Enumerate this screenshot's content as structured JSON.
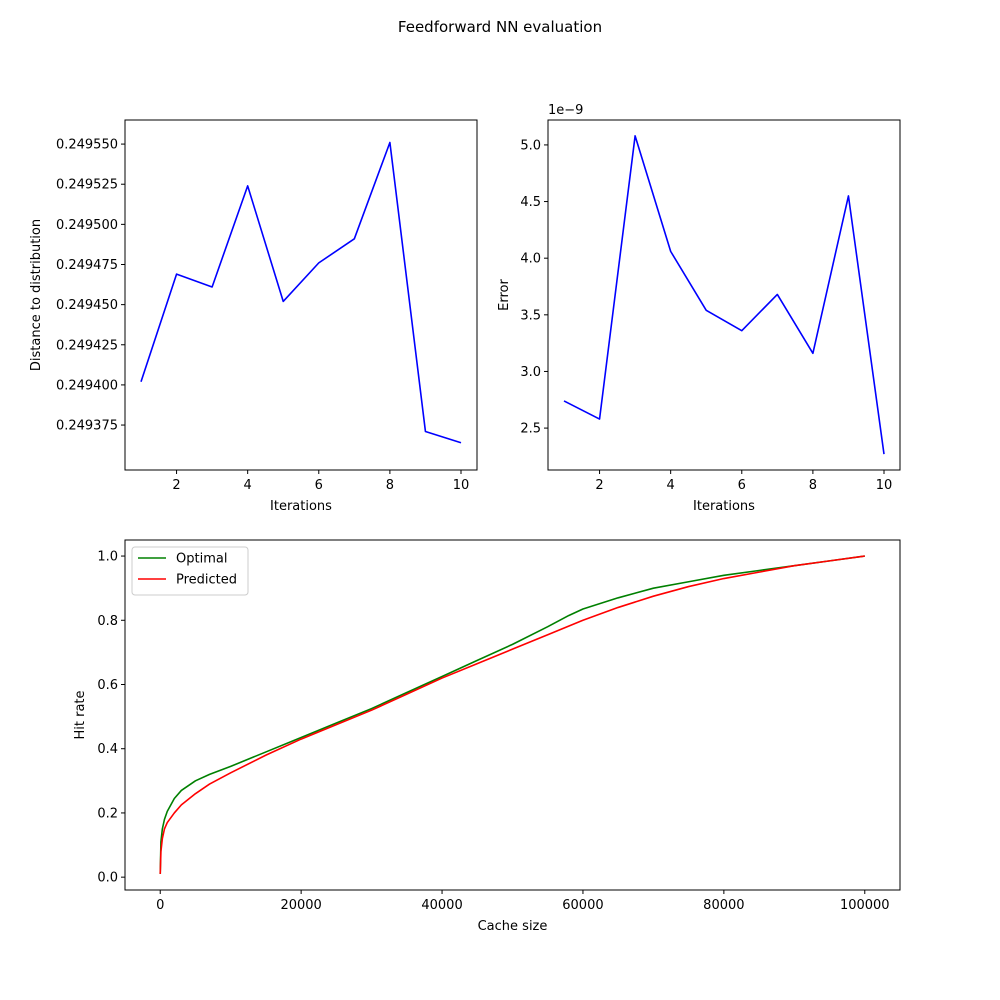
{
  "figure": {
    "title": "Feedforward NN evaluation"
  },
  "chart_data": [
    {
      "type": "line",
      "xlabel": "Iterations",
      "ylabel": "Distance to distribution",
      "xlim": [
        0.55,
        10.45
      ],
      "ylim": [
        0.249347,
        0.249565
      ],
      "xticks": [
        2,
        4,
        6,
        8,
        10
      ],
      "yticks": [
        0.249375,
        0.2494,
        0.249425,
        0.24945,
        0.249475,
        0.2495,
        0.249525,
        0.24955
      ],
      "ytick_labels": [
        "0.249375",
        "0.249400",
        "0.249425",
        "0.249450",
        "0.249475",
        "0.249500",
        "0.249525",
        "0.249550"
      ],
      "grid": false,
      "series": [
        {
          "color": "#0000ff",
          "x": [
            1,
            2,
            3,
            4,
            5,
            6,
            7,
            8,
            9,
            10
          ],
          "values": [
            0.249402,
            0.249469,
            0.249461,
            0.249524,
            0.249452,
            0.249476,
            0.249491,
            0.249551,
            0.249371,
            0.249364
          ]
        }
      ]
    },
    {
      "type": "line",
      "xlabel": "Iterations",
      "ylabel": "Error",
      "offset_text": "1e−9",
      "xlim": [
        0.55,
        10.45
      ],
      "ylim": [
        2.13,
        5.22
      ],
      "xticks": [
        2,
        4,
        6,
        8,
        10
      ],
      "yticks": [
        2.5,
        3.0,
        3.5,
        4.0,
        4.5,
        5.0
      ],
      "ytick_labels": [
        "2.5",
        "3.0",
        "3.5",
        "4.0",
        "4.5",
        "5.0"
      ],
      "grid": false,
      "series": [
        {
          "color": "#0000ff",
          "x": [
            1,
            2,
            3,
            4,
            5,
            6,
            7,
            8,
            9,
            10
          ],
          "values": [
            2.74,
            2.58,
            5.08,
            4.06,
            3.54,
            3.36,
            3.68,
            3.16,
            4.55,
            2.27
          ]
        }
      ]
    },
    {
      "type": "line",
      "xlabel": "Cache size",
      "ylabel": "Hit rate",
      "xlim": [
        -5000,
        105000
      ],
      "ylim": [
        -0.04,
        1.05
      ],
      "xticks": [
        0,
        20000,
        40000,
        60000,
        80000,
        100000
      ],
      "yticks": [
        0.0,
        0.2,
        0.4,
        0.6,
        0.8,
        1.0
      ],
      "ytick_labels": [
        "0.0",
        "0.2",
        "0.4",
        "0.6",
        "0.8",
        "1.0"
      ],
      "legend_position": "top-left",
      "grid": false,
      "series": [
        {
          "name": "Optimal",
          "color": "#008000",
          "x": [
            0,
            100,
            300,
            600,
            1000,
            2000,
            3000,
            5000,
            7000,
            10000,
            15000,
            20000,
            25000,
            30000,
            35000,
            40000,
            45000,
            50000,
            55000,
            58000,
            60000,
            65000,
            70000,
            75000,
            80000,
            85000,
            90000,
            95000,
            100000
          ],
          "values": [
            0.01,
            0.11,
            0.15,
            0.18,
            0.205,
            0.245,
            0.27,
            0.3,
            0.32,
            0.345,
            0.39,
            0.435,
            0.48,
            0.525,
            0.575,
            0.625,
            0.675,
            0.725,
            0.78,
            0.815,
            0.835,
            0.87,
            0.9,
            0.92,
            0.94,
            0.955,
            0.97,
            0.985,
            1.0
          ]
        },
        {
          "name": "Predicted",
          "color": "#ff0000",
          "x": [
            0,
            100,
            300,
            600,
            1000,
            2000,
            3000,
            5000,
            7000,
            10000,
            15000,
            20000,
            25000,
            30000,
            35000,
            40000,
            45000,
            50000,
            55000,
            60000,
            65000,
            70000,
            75000,
            80000,
            85000,
            90000,
            95000,
            100000
          ],
          "values": [
            0.01,
            0.08,
            0.12,
            0.15,
            0.17,
            0.2,
            0.225,
            0.26,
            0.29,
            0.325,
            0.38,
            0.43,
            0.475,
            0.52,
            0.57,
            0.62,
            0.665,
            0.71,
            0.755,
            0.8,
            0.84,
            0.875,
            0.905,
            0.93,
            0.95,
            0.97,
            0.985,
            1.0
          ]
        }
      ]
    }
  ]
}
